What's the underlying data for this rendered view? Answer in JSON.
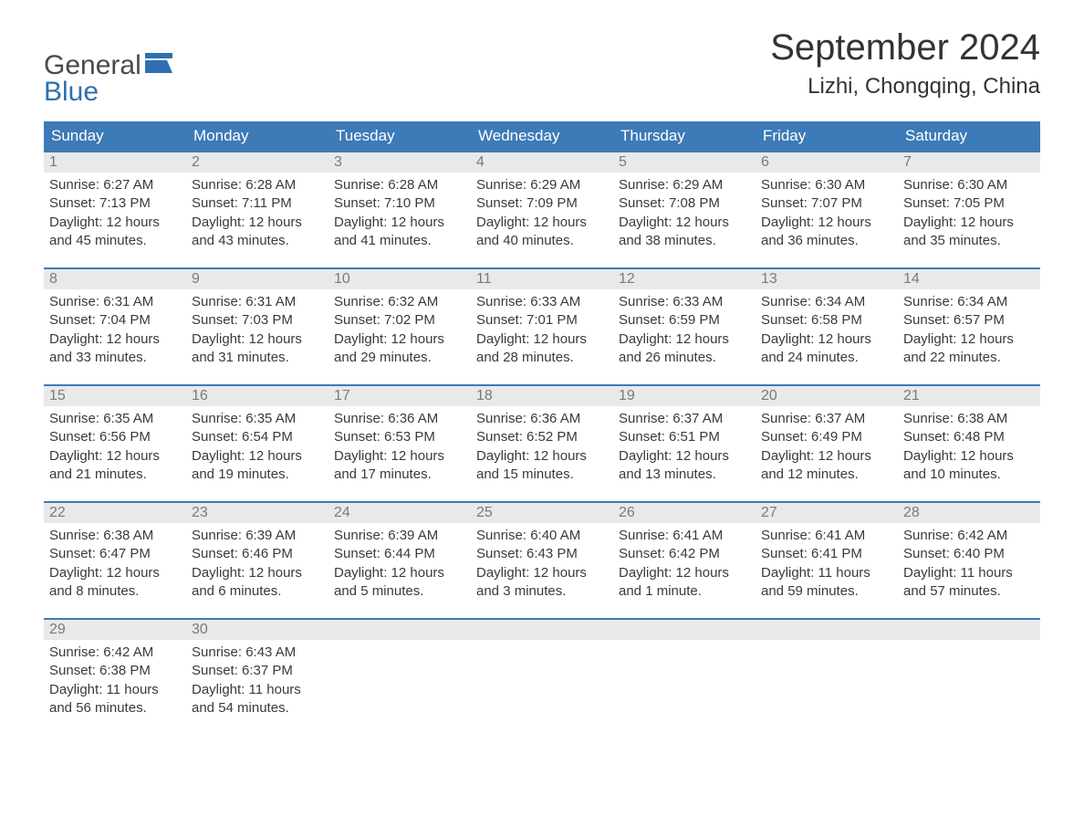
{
  "logo": {
    "general": "General",
    "blue": "Blue"
  },
  "title": "September 2024",
  "location": "Lizhi, Chongqing, China",
  "colors": {
    "header_bg": "#3d7ab8",
    "header_text": "#ffffff",
    "daynum_bg": "#e9e9e9",
    "daynum_text": "#7a7a7a",
    "body_text": "#3a3a3a",
    "row_border": "#3d7ab8",
    "logo_blue": "#2f6fb0",
    "page_bg": "#ffffff"
  },
  "weekdays": [
    "Sunday",
    "Monday",
    "Tuesday",
    "Wednesday",
    "Thursday",
    "Friday",
    "Saturday"
  ],
  "days": [
    {
      "n": 1,
      "sunrise": "6:27 AM",
      "sunset": "7:13 PM",
      "daylight": "12 hours and 45 minutes."
    },
    {
      "n": 2,
      "sunrise": "6:28 AM",
      "sunset": "7:11 PM",
      "daylight": "12 hours and 43 minutes."
    },
    {
      "n": 3,
      "sunrise": "6:28 AM",
      "sunset": "7:10 PM",
      "daylight": "12 hours and 41 minutes."
    },
    {
      "n": 4,
      "sunrise": "6:29 AM",
      "sunset": "7:09 PM",
      "daylight": "12 hours and 40 minutes."
    },
    {
      "n": 5,
      "sunrise": "6:29 AM",
      "sunset": "7:08 PM",
      "daylight": "12 hours and 38 minutes."
    },
    {
      "n": 6,
      "sunrise": "6:30 AM",
      "sunset": "7:07 PM",
      "daylight": "12 hours and 36 minutes."
    },
    {
      "n": 7,
      "sunrise": "6:30 AM",
      "sunset": "7:05 PM",
      "daylight": "12 hours and 35 minutes."
    },
    {
      "n": 8,
      "sunrise": "6:31 AM",
      "sunset": "7:04 PM",
      "daylight": "12 hours and 33 minutes."
    },
    {
      "n": 9,
      "sunrise": "6:31 AM",
      "sunset": "7:03 PM",
      "daylight": "12 hours and 31 minutes."
    },
    {
      "n": 10,
      "sunrise": "6:32 AM",
      "sunset": "7:02 PM",
      "daylight": "12 hours and 29 minutes."
    },
    {
      "n": 11,
      "sunrise": "6:33 AM",
      "sunset": "7:01 PM",
      "daylight": "12 hours and 28 minutes."
    },
    {
      "n": 12,
      "sunrise": "6:33 AM",
      "sunset": "6:59 PM",
      "daylight": "12 hours and 26 minutes."
    },
    {
      "n": 13,
      "sunrise": "6:34 AM",
      "sunset": "6:58 PM",
      "daylight": "12 hours and 24 minutes."
    },
    {
      "n": 14,
      "sunrise": "6:34 AM",
      "sunset": "6:57 PM",
      "daylight": "12 hours and 22 minutes."
    },
    {
      "n": 15,
      "sunrise": "6:35 AM",
      "sunset": "6:56 PM",
      "daylight": "12 hours and 21 minutes."
    },
    {
      "n": 16,
      "sunrise": "6:35 AM",
      "sunset": "6:54 PM",
      "daylight": "12 hours and 19 minutes."
    },
    {
      "n": 17,
      "sunrise": "6:36 AM",
      "sunset": "6:53 PM",
      "daylight": "12 hours and 17 minutes."
    },
    {
      "n": 18,
      "sunrise": "6:36 AM",
      "sunset": "6:52 PM",
      "daylight": "12 hours and 15 minutes."
    },
    {
      "n": 19,
      "sunrise": "6:37 AM",
      "sunset": "6:51 PM",
      "daylight": "12 hours and 13 minutes."
    },
    {
      "n": 20,
      "sunrise": "6:37 AM",
      "sunset": "6:49 PM",
      "daylight": "12 hours and 12 minutes."
    },
    {
      "n": 21,
      "sunrise": "6:38 AM",
      "sunset": "6:48 PM",
      "daylight": "12 hours and 10 minutes."
    },
    {
      "n": 22,
      "sunrise": "6:38 AM",
      "sunset": "6:47 PM",
      "daylight": "12 hours and 8 minutes."
    },
    {
      "n": 23,
      "sunrise": "6:39 AM",
      "sunset": "6:46 PM",
      "daylight": "12 hours and 6 minutes."
    },
    {
      "n": 24,
      "sunrise": "6:39 AM",
      "sunset": "6:44 PM",
      "daylight": "12 hours and 5 minutes."
    },
    {
      "n": 25,
      "sunrise": "6:40 AM",
      "sunset": "6:43 PM",
      "daylight": "12 hours and 3 minutes."
    },
    {
      "n": 26,
      "sunrise": "6:41 AM",
      "sunset": "6:42 PM",
      "daylight": "12 hours and 1 minute."
    },
    {
      "n": 27,
      "sunrise": "6:41 AM",
      "sunset": "6:41 PM",
      "daylight": "11 hours and 59 minutes."
    },
    {
      "n": 28,
      "sunrise": "6:42 AM",
      "sunset": "6:40 PM",
      "daylight": "11 hours and 57 minutes."
    },
    {
      "n": 29,
      "sunrise": "6:42 AM",
      "sunset": "6:38 PM",
      "daylight": "11 hours and 56 minutes."
    },
    {
      "n": 30,
      "sunrise": "6:43 AM",
      "sunset": "6:37 PM",
      "daylight": "11 hours and 54 minutes."
    }
  ],
  "labels": {
    "sunrise": "Sunrise:",
    "sunset": "Sunset:",
    "daylight": "Daylight:"
  },
  "layout": {
    "start_weekday": 0,
    "columns": 7
  }
}
